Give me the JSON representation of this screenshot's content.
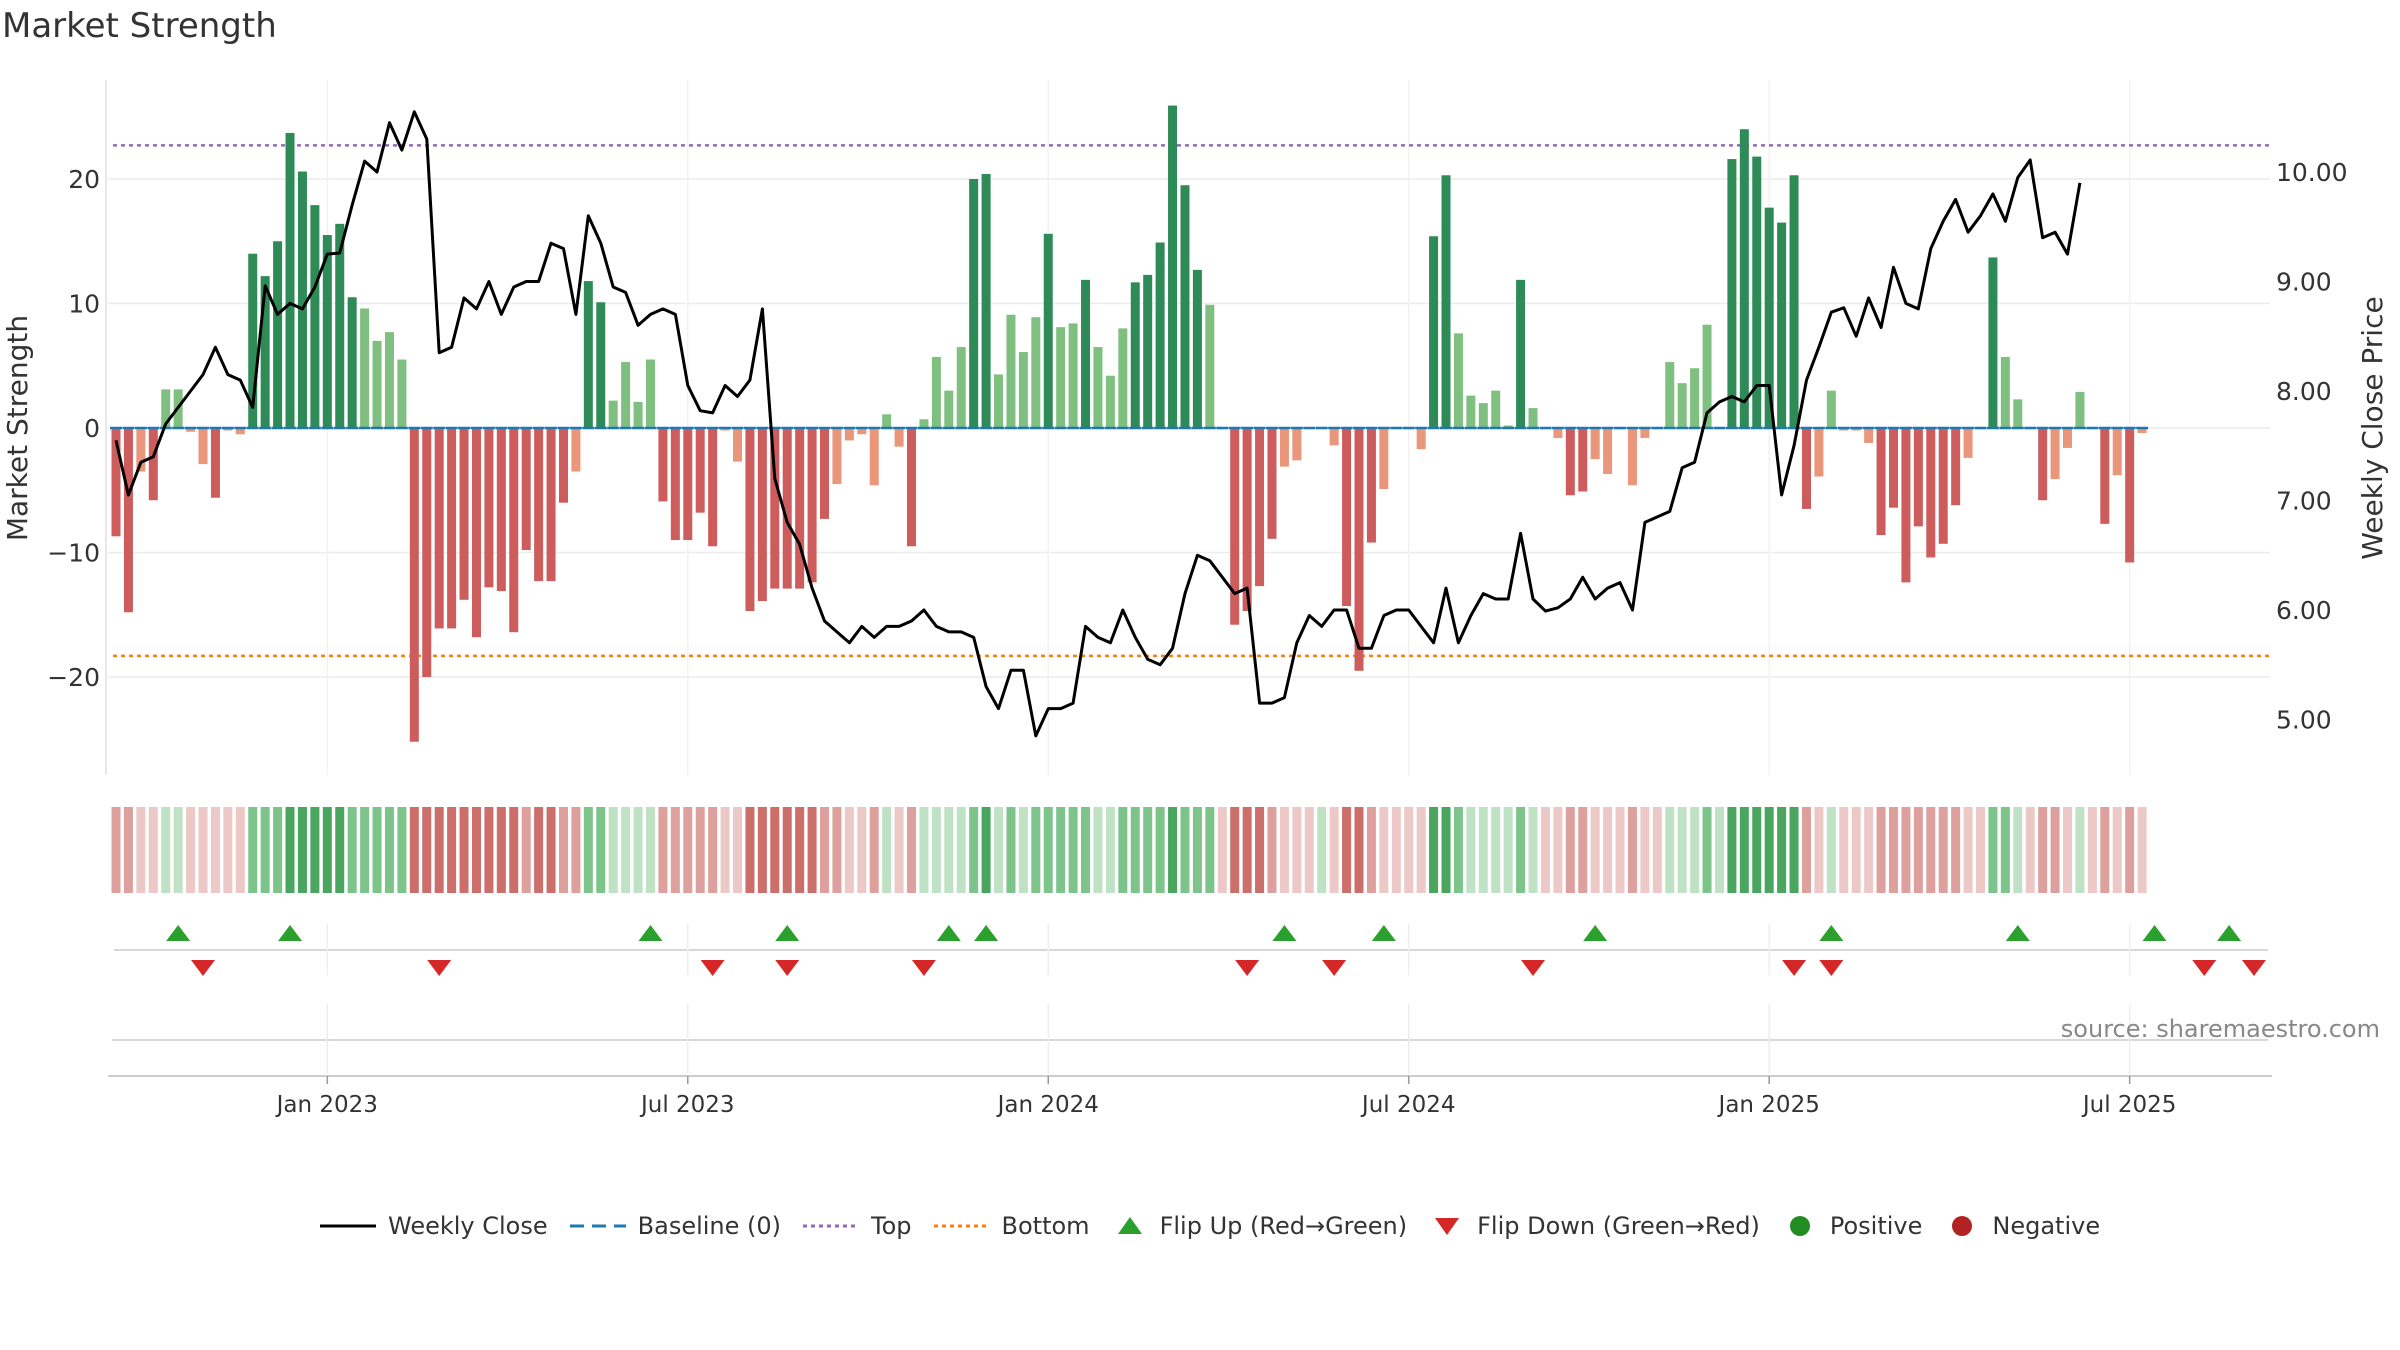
{
  "title": "Market Strength",
  "source": "source: sharemaestro.com",
  "legend": {
    "weekly_close": "Weekly Close",
    "baseline": "Baseline (0)",
    "top": "Top",
    "bottom": "Bottom",
    "flip_up": "Flip Up (Red→Green)",
    "flip_down": "Flip Down (Green→Red)",
    "positive": "Positive",
    "negative": "Negative"
  },
  "colors": {
    "price_line": "#000000",
    "baseline": "#1f77b4",
    "top": "#9467bd",
    "bottom": "#ff7f0e",
    "flip_up": "#2ca02c",
    "flip_down": "#d62728",
    "positive": "#2ca02c",
    "negative": "#c0392b",
    "strong_pos": "#2e8b57",
    "weak_pos": "#7fbf7f",
    "strong_neg": "#cd5c5c",
    "weak_neg": "#e9967a"
  },
  "chart_data": {
    "type": "bar",
    "title": "Market Strength",
    "ylabel": "Market Strength",
    "y2label": "Weekly Close Price",
    "x_tick_labels": [
      "Jan 2023",
      "Jul 2023",
      "Jan 2024",
      "Jul 2024",
      "Jan 2025",
      "Jul 2025"
    ],
    "x_ticks_week_index": [
      17,
      46,
      75,
      104,
      133,
      162
    ],
    "ylim": [
      -28,
      28
    ],
    "yticks": [
      -20,
      -10,
      0,
      10,
      20
    ],
    "y2lim": [
      4.64,
      11.06
    ],
    "y2ticks": [
      5.0,
      6.0,
      7.0,
      8.0,
      9.0,
      10.0
    ],
    "y2tick_labels": [
      "5.00",
      "6.00",
      "7.00",
      "8.00",
      "9.00",
      "10.00"
    ],
    "top_threshold": 22.7,
    "bottom_threshold": -18.3,
    "baseline": 0,
    "strength": [
      -8.7,
      -14.8,
      -3.5,
      -5.8,
      3.1,
      3.1,
      -0.3,
      -2.9,
      -5.6,
      -0.2,
      -0.5,
      14.0,
      12.2,
      15.0,
      23.7,
      20.6,
      17.9,
      15.5,
      16.4,
      10.5,
      9.6,
      7.0,
      7.7,
      5.5,
      -25.2,
      -20.0,
      -16.1,
      -16.1,
      -13.8,
      -16.8,
      -12.8,
      -13.1,
      -16.4,
      -9.8,
      -12.3,
      -12.3,
      -6.0,
      -3.5,
      11.8,
      10.1,
      2.2,
      5.3,
      2.1,
      5.5,
      -5.9,
      -9.0,
      -9.0,
      -6.8,
      -9.5,
      -0.2,
      -2.7,
      -14.7,
      -13.9,
      -12.9,
      -12.9,
      -12.9,
      -12.4,
      -7.3,
      -4.5,
      -1.0,
      -0.5,
      -4.6,
      1.1,
      -1.5,
      -9.5,
      0.7,
      5.7,
      3.0,
      6.5,
      20.0,
      20.4,
      4.3,
      9.1,
      6.1,
      8.9,
      15.6,
      8.1,
      8.4,
      11.9,
      6.5,
      4.2,
      8.0,
      11.7,
      12.3,
      14.9,
      25.9,
      19.5,
      12.7,
      9.9,
      -0.1,
      -15.8,
      -14.7,
      -12.7,
      -8.9,
      -3.1,
      -2.6,
      -0.1,
      -0.1,
      -1.4,
      -14.3,
      -19.5,
      -9.2,
      -4.9,
      -0.1,
      -0.1,
      -1.7,
      15.4,
      20.3,
      7.6,
      2.6,
      2.0,
      3.0,
      0.2,
      11.9,
      1.6,
      -0.1,
      -0.8,
      -5.4,
      -5.1,
      -2.5,
      -3.7,
      -0.1,
      -4.6,
      -0.8,
      -0.1,
      5.3,
      3.6,
      4.8,
      8.3,
      -0.1,
      21.6,
      24.0,
      21.8,
      17.7,
      16.5,
      20.3,
      -6.5,
      -3.9,
      3.0,
      -0.2,
      -0.2,
      -1.2,
      -8.6,
      -6.4,
      -12.4,
      -7.9,
      -10.4,
      -9.3,
      -6.2,
      -2.4,
      -0.1,
      13.7,
      5.7,
      2.3,
      -0.1,
      -5.8,
      -4.1,
      -1.6,
      2.9,
      -0.1,
      -7.7,
      -3.8,
      -10.8,
      -0.4
    ],
    "close": [
      7.55,
      7.05,
      7.35,
      7.4,
      7.7,
      7.85,
      8.0,
      8.15,
      8.4,
      8.15,
      8.1,
      7.85,
      8.96,
      8.7,
      8.8,
      8.75,
      8.95,
      9.25,
      9.26,
      9.7,
      10.1,
      10.0,
      10.45,
      10.2,
      10.55,
      10.3,
      8.35,
      8.4,
      8.85,
      8.75,
      9.0,
      8.7,
      8.95,
      9.0,
      9.0,
      9.35,
      9.3,
      8.7,
      9.6,
      9.35,
      8.95,
      8.9,
      8.6,
      8.7,
      8.75,
      8.7,
      8.05,
      7.82,
      7.8,
      8.05,
      7.95,
      8.1,
      8.75,
      7.2,
      6.8,
      6.6,
      6.2,
      5.9,
      5.8,
      5.7,
      5.85,
      5.75,
      5.85,
      5.85,
      5.9,
      6.0,
      5.85,
      5.8,
      5.8,
      5.75,
      5.3,
      5.1,
      5.45,
      5.45,
      4.85,
      5.1,
      5.1,
      5.15,
      5.85,
      5.75,
      5.7,
      6.0,
      5.75,
      5.55,
      5.5,
      5.65,
      6.15,
      6.5,
      6.45,
      6.3,
      6.15,
      6.2,
      5.15,
      5.15,
      5.2,
      5.7,
      5.95,
      5.85,
      6.0,
      6.0,
      5.65,
      5.65,
      5.95,
      6.0,
      6.0,
      5.85,
      5.7,
      6.2,
      5.7,
      5.95,
      6.15,
      6.1,
      6.1,
      6.7,
      6.1,
      5.99,
      6.02,
      6.1,
      6.3,
      6.1,
      6.2,
      6.25,
      6.0,
      6.8,
      6.85,
      6.9,
      7.3,
      7.35,
      7.8,
      7.9,
      7.95,
      7.9,
      8.05,
      8.05,
      7.05,
      7.5,
      8.1,
      8.4,
      8.72,
      8.76,
      8.5,
      8.85,
      8.58,
      9.13,
      8.8,
      8.75,
      9.3,
      9.55,
      9.75,
      9.45,
      9.6,
      9.8,
      9.55,
      9.95,
      10.11,
      9.4,
      9.45,
      9.25,
      9.9
    ],
    "flip_up_week_index": [
      5,
      14,
      43,
      54,
      67,
      70,
      94,
      102,
      119,
      138,
      153,
      164,
      170
    ],
    "flip_down_week_index": [
      7,
      26,
      48,
      54,
      65,
      91,
      98,
      114,
      135,
      138,
      168,
      172
    ],
    "heat_bands": [
      -2,
      -2,
      -1,
      -1,
      1,
      1,
      -1,
      -1,
      -1,
      -1,
      -1,
      2,
      2,
      2,
      3,
      3,
      3,
      3,
      3,
      2,
      2,
      2,
      2,
      2,
      -3,
      -3,
      -3,
      -3,
      -3,
      -3,
      -3,
      -3,
      -3,
      -2,
      -3,
      -3,
      -2,
      -2,
      2,
      2,
      1,
      1,
      1,
      1,
      -2,
      -2,
      -2,
      -2,
      -2,
      -1,
      -1,
      -3,
      -3,
      -3,
      -3,
      -3,
      -3,
      -2,
      -2,
      -1,
      -1,
      -2,
      1,
      -1,
      -2,
      1,
      1,
      1,
      1,
      2,
      3,
      1,
      2,
      1,
      2,
      2,
      2,
      2,
      2,
      1,
      1,
      2,
      2,
      2,
      2,
      3,
      2,
      2,
      2,
      -1,
      -3,
      -3,
      -3,
      -2,
      -1,
      -1,
      -1,
      1,
      -1,
      -3,
      -3,
      -2,
      -1,
      -1,
      -1,
      -1,
      3,
      3,
      2,
      1,
      1,
      1,
      1,
      2,
      1,
      -1,
      -1,
      -2,
      -2,
      -1,
      -1,
      -1,
      -2,
      -1,
      -1,
      1,
      1,
      1,
      2,
      1,
      3,
      3,
      3,
      3,
      3,
      3,
      -2,
      -1,
      1,
      -1,
      -1,
      -1,
      -2,
      -2,
      -2,
      -2,
      -2,
      -2,
      -2,
      -1,
      -1,
      2,
      2,
      1,
      -1,
      -2,
      -2,
      -1,
      1,
      -1,
      -2,
      -1,
      -2,
      -1
    ]
  }
}
